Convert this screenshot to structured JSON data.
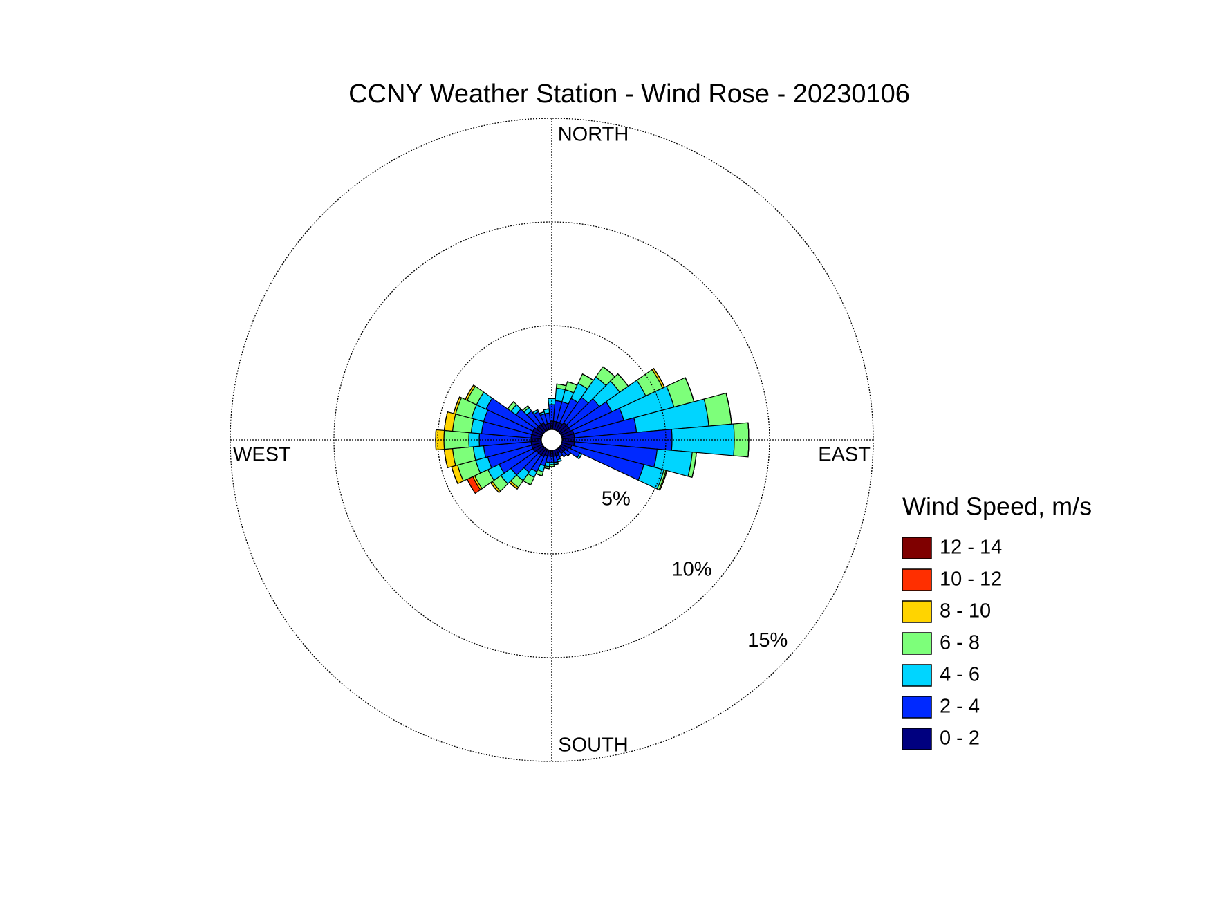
{
  "chart_data": {
    "type": "windrose",
    "title": "CCNY Weather Station - Wind Rose - 20230106",
    "direction_labels": {
      "north": "NORTH",
      "east": "EAST",
      "south": "SOUTH",
      "west": "WEST"
    },
    "legend_title": "Wind Speed, m/s",
    "x": [
      0,
      10,
      20,
      30,
      40,
      50,
      60,
      70,
      80,
      90,
      100,
      110,
      120,
      130,
      140,
      150,
      160,
      170,
      180,
      190,
      200,
      210,
      220,
      230,
      240,
      250,
      260,
      270,
      280,
      290,
      300,
      310,
      320,
      330,
      340,
      350
    ],
    "rlim": [
      0,
      15
    ],
    "rticks": [
      {
        "value": 5,
        "label": "5%"
      },
      {
        "value": 10,
        "label": "10%"
      },
      {
        "value": 15,
        "label": "15%"
      }
    ],
    "grid": true,
    "legend": "right",
    "series": [
      {
        "name": "0 - 2",
        "color": "#00007f",
        "values": [
          0.4,
          0.4,
          0.4,
          0.4,
          0.5,
          0.5,
          0.5,
          0.6,
          0.6,
          0.6,
          0.6,
          0.5,
          0.4,
          0.3,
          0.3,
          0.2,
          0.3,
          0.3,
          0.3,
          0.3,
          0.3,
          0.4,
          0.4,
          0.4,
          0.5,
          0.5,
          0.5,
          0.5,
          0.5,
          0.5,
          0.5,
          0.4,
          0.4,
          0.4,
          0.3,
          0.3
        ]
      },
      {
        "name": "2 - 4",
        "color": "#0029ff",
        "values": [
          0.8,
          1.0,
          1.0,
          1.3,
          1.5,
          1.8,
          2.2,
          2.5,
          3.0,
          4.7,
          4.0,
          3.6,
          0.6,
          0.3,
          0.2,
          0.2,
          0.2,
          0.3,
          0.3,
          0.3,
          0.5,
          0.8,
          1.0,
          1.5,
          1.8,
          2.2,
          2.3,
          2.5,
          2.4,
          2.4,
          2.5,
          1.2,
          0.8,
          0.6,
          0.5,
          0.5
        ]
      },
      {
        "name": "4 - 6",
        "color": "#00d5ff",
        "values": [
          0.3,
          0.6,
          0.6,
          0.8,
          1.2,
          1.2,
          1.8,
          2.5,
          3.5,
          3.0,
          1.7,
          1.0,
          0.1,
          0,
          0,
          0,
          0.1,
          0.1,
          0.1,
          0.2,
          0.3,
          0.3,
          0.5,
          0.6,
          0.6,
          0.6,
          0.5,
          0.5,
          0.5,
          0.6,
          0.5,
          0.3,
          0.2,
          0.1,
          0.1,
          0.2
        ]
      },
      {
        "name": "6 - 8",
        "color": "#7dff7a",
        "values": [
          0,
          0.2,
          0.4,
          0.5,
          0.6,
          0.5,
          0.9,
          1.0,
          1.1,
          0.7,
          0.2,
          0.1,
          0,
          0,
          0,
          0,
          0,
          0,
          0.1,
          0.1,
          0.2,
          0.4,
          0.4,
          0.5,
          0.7,
          0.9,
          1.0,
          1.2,
          0.9,
          0.8,
          0.5,
          0.2,
          0.1,
          0,
          0,
          0
        ]
      },
      {
        "name": "8 - 10",
        "color": "#ffd400",
        "values": [
          0,
          0,
          0,
          0,
          0,
          0,
          0.1,
          0,
          0,
          0,
          0,
          0.05,
          0,
          0,
          0,
          0,
          0,
          0,
          0,
          0,
          0,
          0,
          0.1,
          0.1,
          0.1,
          0.3,
          0.4,
          0.4,
          0.4,
          0.1,
          0.1,
          0,
          0,
          0,
          0,
          0
        ]
      },
      {
        "name": "10 - 12",
        "color": "#ff2f00",
        "values": [
          0,
          0,
          0,
          0,
          0,
          0,
          0,
          0,
          0,
          0,
          0,
          0,
          0,
          0,
          0,
          0,
          0,
          0,
          0,
          0,
          0,
          0,
          0,
          0,
          0.3,
          0,
          0,
          0,
          0,
          0,
          0,
          0,
          0,
          0,
          0,
          0
        ]
      },
      {
        "name": "12 - 14",
        "color": "#7f0000",
        "values": [
          0,
          0,
          0,
          0,
          0,
          0,
          0,
          0,
          0,
          0,
          0,
          0,
          0,
          0,
          0,
          0,
          0,
          0,
          0,
          0,
          0,
          0,
          0,
          0,
          0,
          0,
          0,
          0,
          0,
          0,
          0,
          0,
          0,
          0,
          0,
          0
        ]
      }
    ]
  }
}
